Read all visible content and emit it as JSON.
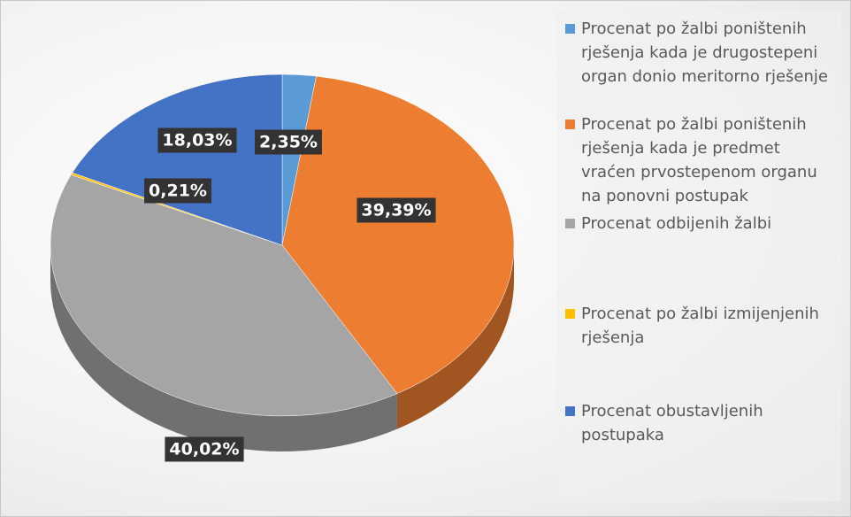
{
  "chart_data": {
    "type": "pie",
    "categories": [
      "Procenat po žalbi poništenih rješenja kada je drugostepeni organ donio meritorno rješenje",
      "Procenat po žalbi poništenih rješenja kada je predmet vraćen prvostepenom organu na ponovni postupak",
      "Procenat odbijenih žalbi",
      "Procenat po žalbi izmijenjenih rješenja",
      "Procenat obustavljenih postupaka"
    ],
    "values": [
      2.35,
      39.39,
      40.02,
      0.21,
      18.03
    ],
    "value_labels": [
      "2,35%",
      "39,39%",
      "40,02%",
      "0,21%",
      "18,03%"
    ],
    "colors": [
      "#5b9bd5",
      "#ed7d31",
      "#a5a5a5",
      "#ffc000",
      "#4472c4"
    ],
    "legend": "right"
  }
}
